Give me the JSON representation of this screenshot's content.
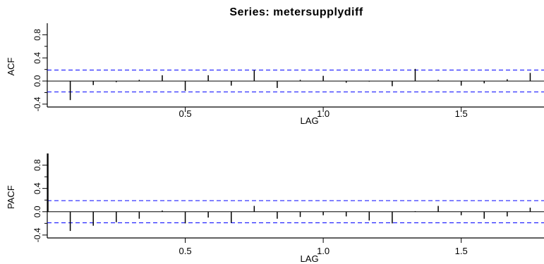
{
  "title": "Series:  metersupplydiff",
  "chart_data": [
    {
      "type": "bar",
      "name": "acf",
      "ylabel": "ACF",
      "xlabel": "LAG",
      "xlim": [
        0,
        1.8
      ],
      "ylim": [
        -0.45,
        1.0
      ],
      "xticks": [
        0.5,
        1.0,
        1.5
      ],
      "xtick_labels": [
        "0.5",
        "1.0",
        "1.5"
      ],
      "yticks": [
        -0.4,
        0.0,
        0.4,
        0.8
      ],
      "ytick_labels": [
        "-0.4",
        "0.0",
        "0.4",
        "0.8"
      ],
      "confidence_band": 0.19,
      "lags": [
        0.0833,
        0.1667,
        0.25,
        0.3333,
        0.4167,
        0.5,
        0.5833,
        0.6667,
        0.75,
        0.8333,
        0.9167,
        1.0,
        1.0833,
        1.1667,
        1.25,
        1.3333,
        1.4167,
        1.5,
        1.5833,
        1.6667,
        1.75
      ],
      "values": [
        -0.33,
        -0.07,
        -0.02,
        0.02,
        0.1,
        -0.17,
        0.1,
        -0.08,
        0.19,
        -0.12,
        0.02,
        0.09,
        -0.03,
        -0.01,
        -0.09,
        0.21,
        0.02,
        -0.08,
        -0.04,
        0.03,
        0.14
      ]
    },
    {
      "type": "bar",
      "name": "pacf",
      "ylabel": "PACF",
      "xlabel": "LAG",
      "xlim": [
        0,
        1.8
      ],
      "ylim": [
        -0.45,
        1.0
      ],
      "xticks": [
        0.5,
        1.0,
        1.5
      ],
      "xtick_labels": [
        "0.5",
        "1.0",
        "1.5"
      ],
      "yticks": [
        -0.4,
        0.0,
        0.4,
        0.8
      ],
      "ytick_labels": [
        "-0.4",
        "0.0",
        "0.4",
        "0.8"
      ],
      "confidence_band": 0.19,
      "lags": [
        0.0833,
        0.1667,
        0.25,
        0.3333,
        0.4167,
        0.5,
        0.5833,
        0.6667,
        0.75,
        0.8333,
        0.9167,
        1.0,
        1.0833,
        1.1667,
        1.25,
        1.3333,
        1.4167,
        1.5,
        1.5833,
        1.6667,
        1.75
      ],
      "values": [
        -0.33,
        -0.24,
        -0.18,
        -0.12,
        0.02,
        -0.2,
        -0.1,
        -0.19,
        0.1,
        -0.12,
        -0.09,
        -0.06,
        -0.08,
        -0.15,
        -0.2,
        0.01,
        0.1,
        -0.06,
        -0.12,
        -0.08,
        0.07
      ]
    }
  ],
  "colors": {
    "bars": "#000000",
    "confidence_lines": "#0000ff",
    "axes": "#000000"
  }
}
